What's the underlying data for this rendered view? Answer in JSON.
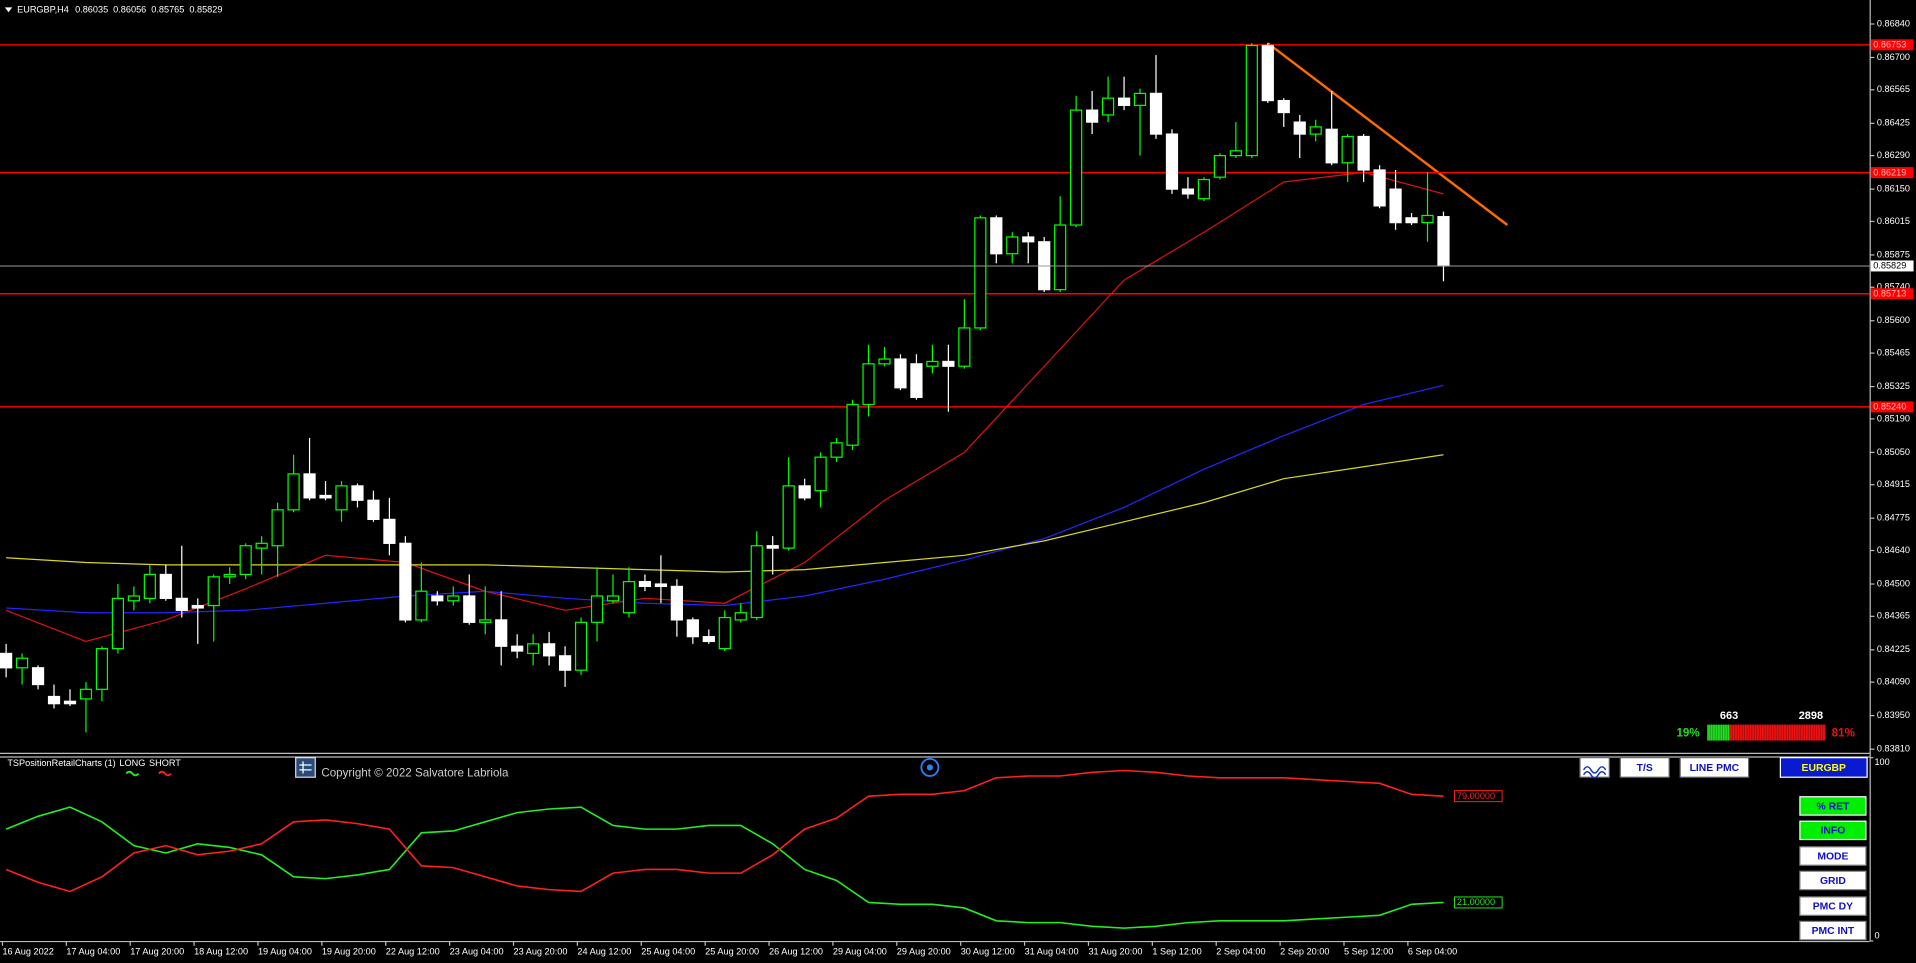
{
  "header": {
    "symbol": "EURGBP,H4"
  },
  "chart_data": [
    {
      "type": "candlestick",
      "categories": [
        "16 Aug 2022",
        null,
        null,
        null,
        "17 Aug 04:00",
        null,
        null,
        null,
        "17 Aug 20:00",
        null,
        null,
        null,
        "18 Aug 12:00",
        null,
        null,
        null,
        "19 Aug 04:00",
        null,
        null,
        null,
        "19 Aug 20:00",
        null,
        null,
        null,
        "22 Aug 12:00",
        null,
        null,
        null,
        "23 Aug 04:00",
        null,
        null,
        null,
        "23 Aug 20:00",
        null,
        null,
        null,
        "24 Aug 12:00",
        null,
        null,
        null,
        "25 Aug 04:00",
        null,
        null,
        null,
        "25 Aug 20:00",
        null,
        null,
        null,
        "26 Aug 12:00",
        null,
        null,
        null,
        "29 Aug 04:00",
        null,
        null,
        null,
        "29 Aug 20:00",
        null,
        null,
        null,
        "30 Aug 12:00",
        null,
        null,
        null,
        "31 Aug 04:00",
        null,
        null,
        null,
        "31 Aug 20:00",
        null,
        null,
        null,
        "1 Sep 12:00",
        null,
        null,
        null,
        "2 Sep 04:00",
        null,
        null,
        null,
        "2 Sep 20:00",
        null,
        null,
        null,
        "5 Sep 12:00",
        null,
        null,
        null,
        "6 Sep 04:00",
        null,
        null
      ],
      "open": [
        0.8421,
        0.8415,
        0.8415,
        0.8403,
        0.8401,
        0.8402,
        0.8406,
        0.8423,
        0.8443,
        0.8444,
        0.8454,
        0.8444,
        0.8441,
        0.8441,
        0.8453,
        0.8454,
        0.8465,
        0.8466,
        0.8481,
        0.8496,
        0.8487,
        0.8481,
        0.8491,
        0.8485,
        0.8477,
        0.8467,
        0.8435,
        0.8445,
        0.8443,
        0.8445,
        0.8434,
        0.8435,
        0.8424,
        0.8421,
        0.8425,
        0.842,
        0.8414,
        0.8434,
        0.8443,
        0.8438,
        0.8451,
        0.845,
        0.8449,
        0.8435,
        0.8428,
        0.8423,
        0.8435,
        0.8436,
        0.8466,
        0.8465,
        0.8491,
        0.8489,
        0.8503,
        0.8508,
        0.8525,
        0.8542,
        0.8544,
        0.8542,
        0.8541,
        0.8543,
        0.8541,
        0.8557,
        0.8603,
        0.8588,
        0.8595,
        0.8593,
        0.8573,
        0.86,
        0.8648,
        0.8646,
        0.8653,
        0.865,
        0.8655,
        0.8638,
        0.8615,
        0.8611,
        0.862,
        0.8629,
        0.8629,
        0.8675,
        0.8652,
        0.8643,
        0.8638,
        0.864,
        0.8626,
        0.8637,
        0.8623,
        0.8615,
        0.8603,
        0.8601,
        0.86035
      ],
      "high": [
        0.8425,
        0.8421,
        0.8416,
        0.8408,
        0.8406,
        0.8409,
        0.8424,
        0.845,
        0.8449,
        0.8458,
        0.8458,
        0.8466,
        0.8444,
        0.8454,
        0.8457,
        0.8467,
        0.847,
        0.8484,
        0.8504,
        0.8511,
        0.8493,
        0.8493,
        0.8492,
        0.8489,
        0.8486,
        0.847,
        0.8459,
        0.8447,
        0.8449,
        0.8454,
        0.8449,
        0.8447,
        0.8429,
        0.8429,
        0.843,
        0.8424,
        0.8436,
        0.8457,
        0.8454,
        0.8457,
        0.8454,
        0.8462,
        0.8452,
        0.8436,
        0.8431,
        0.8439,
        0.8442,
        0.8472,
        0.847,
        0.8503,
        0.8494,
        0.8505,
        0.8511,
        0.8527,
        0.855,
        0.8549,
        0.8546,
        0.8546,
        0.855,
        0.855,
        0.8569,
        0.8604,
        0.8604,
        0.8597,
        0.8597,
        0.8595,
        0.8612,
        0.8654,
        0.8656,
        0.8662,
        0.8662,
        0.8657,
        0.8671,
        0.864,
        0.862,
        0.862,
        0.863,
        0.8643,
        0.8676,
        0.8676,
        0.8653,
        0.8646,
        0.8644,
        0.8656,
        0.8638,
        0.8638,
        0.8625,
        0.8623,
        0.8605,
        0.8622,
        0.86056
      ],
      "low": [
        0.8411,
        0.8408,
        0.8406,
        0.8398,
        0.8399,
        0.8388,
        0.8401,
        0.8421,
        0.8439,
        0.8442,
        0.8443,
        0.8436,
        0.8425,
        0.8426,
        0.845,
        0.8452,
        0.8454,
        0.8453,
        0.848,
        0.8485,
        0.8485,
        0.8476,
        0.8482,
        0.8476,
        0.8462,
        0.8434,
        0.8434,
        0.8441,
        0.8441,
        0.8433,
        0.8429,
        0.8416,
        0.8419,
        0.8416,
        0.8416,
        0.8407,
        0.8412,
        0.8426,
        0.8442,
        0.8436,
        0.8447,
        0.8442,
        0.8428,
        0.8425,
        0.8425,
        0.8422,
        0.8434,
        0.8435,
        0.8454,
        0.8464,
        0.8485,
        0.8482,
        0.8501,
        0.8506,
        0.852,
        0.8541,
        0.8531,
        0.8527,
        0.8538,
        0.8522,
        0.854,
        0.8556,
        0.8584,
        0.8584,
        0.8584,
        0.8572,
        0.8572,
        0.8599,
        0.8638,
        0.8643,
        0.8648,
        0.8629,
        0.8636,
        0.8613,
        0.8611,
        0.861,
        0.8619,
        0.8628,
        0.8628,
        0.8651,
        0.8641,
        0.8628,
        0.8635,
        0.8625,
        0.8618,
        0.8618,
        0.8607,
        0.8598,
        0.86,
        0.8593,
        0.85765
      ],
      "close": [
        0.8415,
        0.8419,
        0.8408,
        0.84,
        0.84,
        0.8406,
        0.8423,
        0.8444,
        0.8445,
        0.8454,
        0.8444,
        0.8439,
        0.844,
        0.8453,
        0.8454,
        0.8466,
        0.8467,
        0.8481,
        0.8496,
        0.8486,
        0.8486,
        0.8491,
        0.8485,
        0.8477,
        0.8467,
        0.8435,
        0.8447,
        0.8443,
        0.8445,
        0.8434,
        0.8435,
        0.8424,
        0.8422,
        0.8425,
        0.842,
        0.8414,
        0.8434,
        0.8445,
        0.8445,
        0.8451,
        0.8449,
        0.8449,
        0.8435,
        0.8428,
        0.8426,
        0.8436,
        0.8438,
        0.8466,
        0.8465,
        0.8491,
        0.8486,
        0.8503,
        0.8509,
        0.8525,
        0.8542,
        0.8544,
        0.8532,
        0.8528,
        0.8543,
        0.8541,
        0.8557,
        0.8603,
        0.8588,
        0.8595,
        0.8593,
        0.8573,
        0.86,
        0.8648,
        0.8643,
        0.8653,
        0.865,
        0.8655,
        0.8638,
        0.8615,
        0.8613,
        0.8619,
        0.8629,
        0.8631,
        0.8675,
        0.8652,
        0.8647,
        0.8638,
        0.8641,
        0.8626,
        0.8637,
        0.8623,
        0.8608,
        0.8601,
        0.8601,
        0.8604,
        0.85829
      ],
      "bull_color": "#00ff00",
      "bear_color": "#ffffff",
      "ylim": [
        0.838,
        0.8694
      ],
      "yticks": [
        {
          "value": 0.8684,
          "label": "0.86840"
        },
        {
          "value": 0.867,
          "label": "0.86700"
        },
        0.86565,
        0.86425,
        {
          "value": 0.8629,
          "label": "0.86290"
        },
        {
          "value": 0.8615,
          "label": "0.86150"
        },
        0.86015,
        0.85875,
        {
          "value": 0.8574,
          "label": "0.85740"
        },
        {
          "value": 0.856,
          "label": "0.85600"
        },
        0.85465,
        0.85325,
        {
          "value": 0.8519,
          "label": "0.85190"
        },
        {
          "value": 0.8505,
          "label": "0.85050"
        },
        0.84915,
        0.84775,
        {
          "value": 0.8464,
          "label": "0.84640"
        },
        {
          "value": 0.845,
          "label": "0.84500"
        },
        0.84365,
        0.84225,
        {
          "value": 0.8409,
          "label": "0.84090"
        },
        {
          "value": 0.8395,
          "label": "0.83950"
        },
        {
          "value": 0.8381,
          "label": "0.83810"
        }
      ],
      "levels": [
        0.86753,
        0.86219,
        0.85713,
        {
          "value": 0.8524,
          "label": "0.85240"
        }
      ],
      "level_color": "#ff0000",
      "lines": [
        {
          "color": "#dd1111",
          "width": 1,
          "x": [
            0,
            5,
            10,
            15,
            20,
            25,
            30,
            35,
            40,
            45,
            50,
            55,
            60,
            65,
            70,
            75,
            80,
            85,
            90
          ],
          "values": [
            0.8439,
            0.8426,
            0.8435,
            0.8448,
            0.8462,
            0.8459,
            0.8447,
            0.8439,
            0.8444,
            0.8442,
            0.8459,
            0.8485,
            0.8505,
            0.8541,
            0.8577,
            0.8597,
            0.8618,
            0.8622,
            0.8613
          ]
        },
        {
          "color": "#2424ff",
          "width": 1,
          "x": [
            0,
            5,
            10,
            15,
            20,
            25,
            30,
            35,
            40,
            45,
            50,
            55,
            60,
            65,
            70,
            75,
            80,
            85,
            90
          ],
          "values": [
            0.844,
            0.8438,
            0.8438,
            0.8439,
            0.8442,
            0.8445,
            0.8447,
            0.8444,
            0.8442,
            0.8441,
            0.8445,
            0.8452,
            0.846,
            0.8469,
            0.8482,
            0.8498,
            0.8512,
            0.8525,
            0.8533
          ]
        },
        {
          "color": "#d8d820",
          "width": 1,
          "x": [
            0,
            5,
            10,
            15,
            20,
            25,
            30,
            35,
            40,
            45,
            50,
            55,
            60,
            65,
            70,
            75,
            80,
            85,
            90
          ],
          "values": [
            0.8461,
            0.8459,
            0.8458,
            0.8458,
            0.8458,
            0.8458,
            0.8458,
            0.8457,
            0.8456,
            0.8455,
            0.8456,
            0.8459,
            0.8462,
            0.8468,
            0.8476,
            0.8484,
            0.8494,
            0.8499,
            0.8504
          ]
        },
        {
          "color": "#ff6a00",
          "width": 2,
          "x": [
            79,
            94
          ],
          "values": [
            0.8676,
            0.86
          ]
        }
      ]
    },
    {
      "type": "line",
      "title": "TSPositionRetailCharts (1)",
      "ylim": [
        0,
        100
      ],
      "yticks": [
        0,
        100
      ],
      "series": [
        {
          "name": "LONG",
          "color": "#22ee22",
          "value_label": "21.00000",
          "x": [
            0,
            2,
            4,
            6,
            8,
            10,
            12,
            14,
            16,
            18,
            20,
            22,
            24,
            26,
            28,
            30,
            32,
            34,
            36,
            38,
            40,
            42,
            44,
            46,
            48,
            50,
            52,
            54,
            56,
            58,
            60,
            62,
            64,
            66,
            68,
            70,
            72,
            74,
            76,
            78,
            80,
            82,
            84,
            86,
            88,
            90
          ],
          "values": [
            61,
            68,
            73,
            65,
            52,
            48,
            53,
            51,
            47,
            35,
            34,
            36,
            39,
            59,
            60,
            65,
            70,
            72,
            73,
            63,
            61,
            61,
            63,
            63,
            53,
            39,
            33,
            21,
            20,
            20,
            18,
            11,
            10,
            10,
            8,
            7,
            8,
            10,
            11,
            11,
            11,
            12,
            13,
            14,
            20,
            21
          ]
        },
        {
          "name": "SHORT",
          "color": "#ff2020",
          "value_label": "79.00000",
          "x": [
            0,
            2,
            4,
            6,
            8,
            10,
            12,
            14,
            16,
            18,
            20,
            22,
            24,
            26,
            28,
            30,
            32,
            34,
            36,
            38,
            40,
            42,
            44,
            46,
            48,
            50,
            52,
            54,
            56,
            58,
            60,
            62,
            64,
            66,
            68,
            70,
            72,
            74,
            76,
            78,
            80,
            82,
            84,
            86,
            88,
            90
          ],
          "values": [
            39,
            32,
            27,
            35,
            48,
            52,
            47,
            49,
            53,
            65,
            66,
            64,
            61,
            41,
            40,
            35,
            30,
            28,
            27,
            37,
            39,
            39,
            37,
            37,
            47,
            61,
            67,
            79,
            80,
            80,
            82,
            89,
            90,
            90,
            92,
            93,
            92,
            90,
            89,
            89,
            89,
            88,
            87,
            86,
            80,
            79
          ]
        }
      ]
    }
  ],
  "ui": {
    "copyright": "Copyright © 2022 Salvatore Labriola",
    "top_buttons": [
      "T/S",
      "LINE PMC",
      "EURGBP"
    ],
    "side_buttons": [
      "% RET",
      "INFO",
      "MODE",
      "GRID",
      "PMC DY",
      "PMC INT"
    ],
    "sentiment": {
      "long_count": 663,
      "short_count": 2898,
      "long_pct": {
        "value": 19,
        "label": "19%"
      },
      "short_pct": {
        "value": 81,
        "label": "81%"
      },
      "long_color": "#22dd22",
      "short_color": "#ee1111"
    }
  }
}
